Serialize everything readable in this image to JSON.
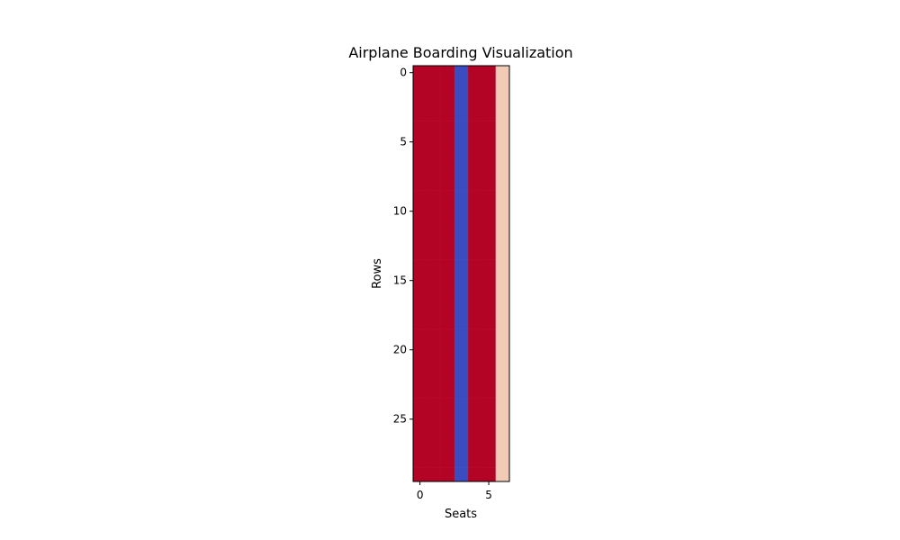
{
  "chart_data": {
    "type": "heatmap",
    "title": "Airplane Boarding Visualization",
    "xlabel": "Seats",
    "ylabel": "Rows",
    "rows": 30,
    "cols": 7,
    "x_ticks": [
      0,
      5
    ],
    "y_ticks": [
      0,
      5,
      10,
      15,
      20,
      25
    ],
    "xlim": [
      -0.5,
      6.5
    ],
    "ylim": [
      29.5,
      -0.5
    ],
    "column_values": [
      1,
      1,
      1,
      0,
      1,
      1,
      0.75
    ],
    "colormap": "coolwarm",
    "colors": {
      "high": "#b40426",
      "low": "#3b4cc0",
      "mid_high": "#f2cbb7"
    },
    "grid": false
  }
}
